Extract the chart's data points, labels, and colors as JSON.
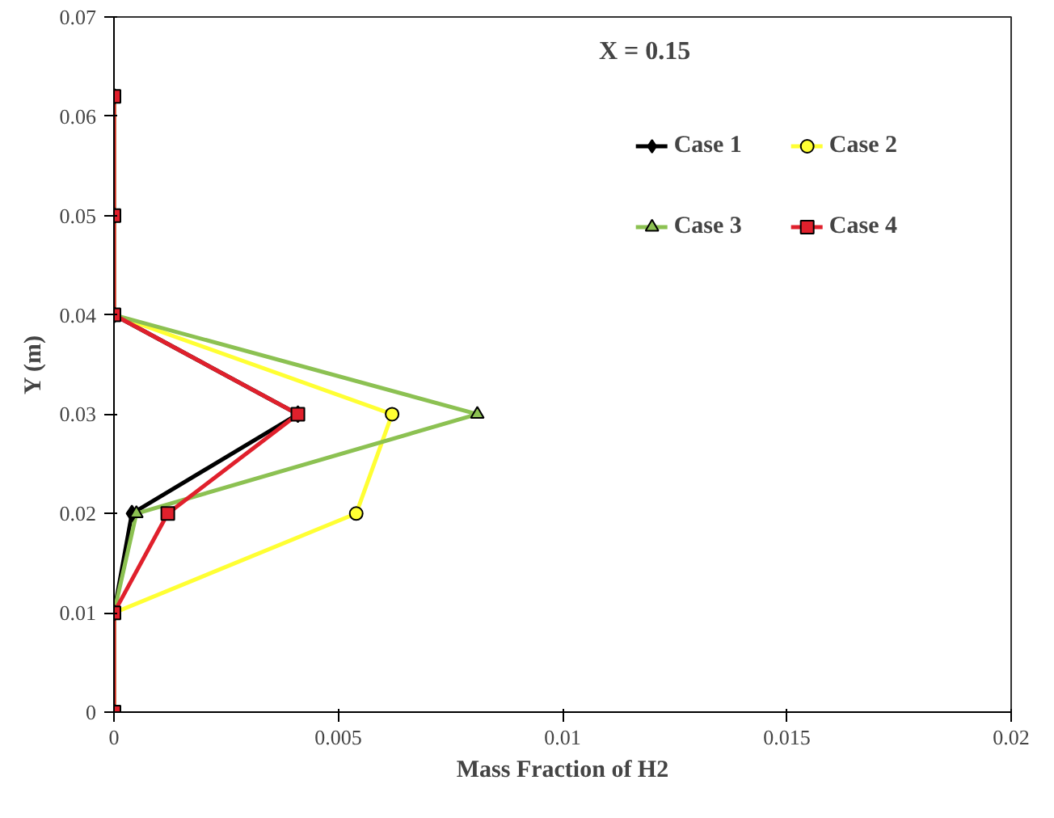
{
  "chart_data": {
    "type": "line",
    "xlabel": "Mass Fraction of H2",
    "ylabel": "Y (m)",
    "annotations": [
      "X = 0.15"
    ],
    "xlim": [
      0,
      0.02
    ],
    "ylim": [
      0,
      0.07
    ],
    "xticks": [
      0,
      0.005,
      0.01,
      0.015,
      0.02
    ],
    "yticks": [
      0,
      0.01,
      0.02,
      0.03,
      0.04,
      0.05,
      0.06,
      0.07
    ],
    "grid": false,
    "legend": "top right",
    "series": [
      {
        "name": "Case 1",
        "color": "#000000",
        "marker": "diamond",
        "x": [
          0,
          0,
          0.0004,
          0.0041,
          0,
          0,
          0
        ],
        "values": [
          0,
          0.01,
          0.02,
          0.03,
          0.04,
          0.05,
          0.062
        ]
      },
      {
        "name": "Case 2",
        "color": "#ffff33",
        "marker": "circle",
        "x": [
          0,
          0,
          0.0054,
          0.0062,
          0,
          0,
          0
        ],
        "values": [
          0,
          0.01,
          0.02,
          0.03,
          0.04,
          0.05,
          0.062
        ]
      },
      {
        "name": "Case 3",
        "color": "#8cc152",
        "marker": "triangle",
        "x": [
          0,
          0,
          0.0005,
          0.0081,
          0,
          0,
          0
        ],
        "values": [
          0,
          0.01,
          0.02,
          0.03,
          0.04,
          0.05,
          0.062
        ]
      },
      {
        "name": "Case 4",
        "color": "#e0202c",
        "marker": "square",
        "x": [
          0,
          0,
          0.0012,
          0.0041,
          0,
          0,
          0
        ],
        "values": [
          0,
          0.01,
          0.02,
          0.03,
          0.04,
          0.05,
          0.062
        ]
      }
    ]
  }
}
